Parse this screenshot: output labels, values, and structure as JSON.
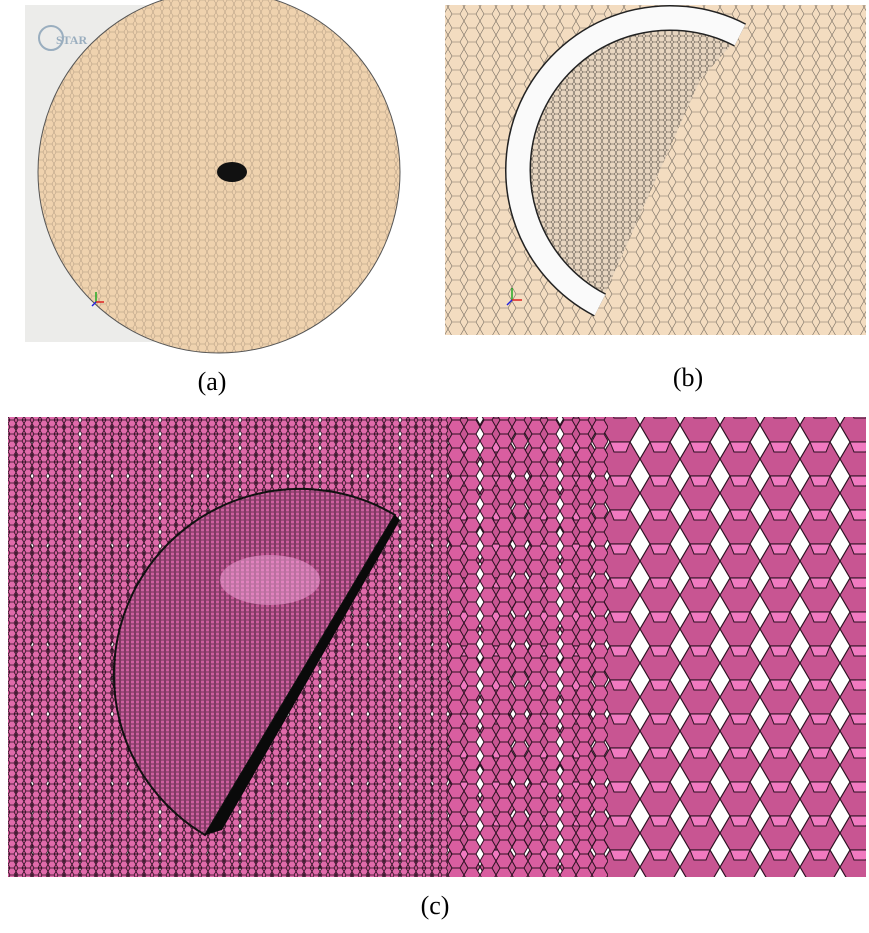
{
  "figure": {
    "panels": [
      {
        "label": "(a)",
        "logo": "STAR"
      },
      {
        "label": "(b)"
      },
      {
        "label": "(c)"
      }
    ]
  }
}
